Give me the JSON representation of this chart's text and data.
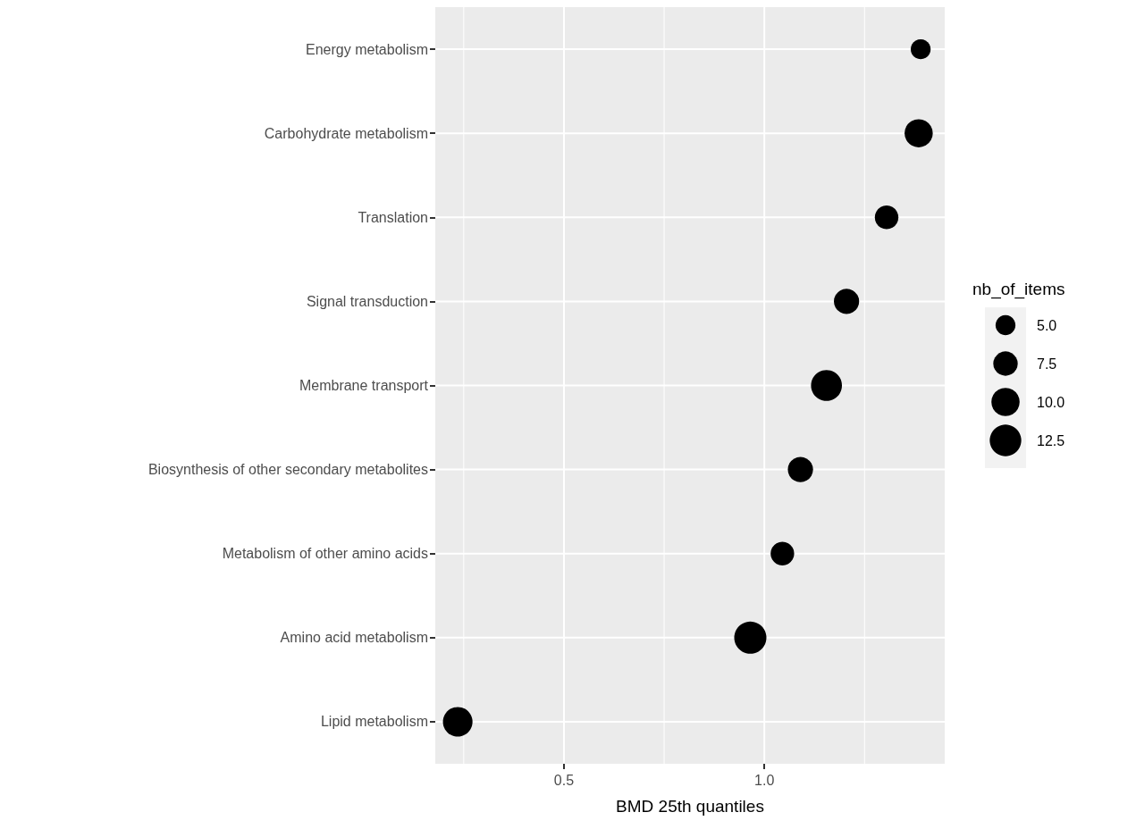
{
  "chart_data": {
    "type": "bubble",
    "xlabel": "BMD 25th quantiles",
    "legend_title": "nb_of_items",
    "categories": [
      "Energy metabolism",
      "Carbohydrate metabolism",
      "Translation",
      "Signal transduction",
      "Membrane transport",
      "Biosynthesis of other secondary metabolites",
      "Metabolism of other amino acids",
      "Amino acid metabolism",
      "Lipid metabolism"
    ],
    "values": [
      1.39,
      1.385,
      1.305,
      1.205,
      1.155,
      1.09,
      1.045,
      0.965,
      0.235
    ],
    "sizes": [
      5,
      10,
      7,
      8,
      12,
      8,
      7,
      13,
      11
    ],
    "size_legend": [
      {
        "value": 5,
        "label": "5.0"
      },
      {
        "value": 7.5,
        "label": "7.5"
      },
      {
        "value": 10,
        "label": "10.0"
      },
      {
        "value": 12.5,
        "label": "12.5"
      }
    ],
    "color": "#000000",
    "orientation": "horizontal",
    "xlim": [
      0.179,
      1.45
    ],
    "xticks": [
      {
        "value": 0.25,
        "label": null
      },
      {
        "value": 0.5,
        "label": "0.5"
      },
      {
        "value": 0.75,
        "label": null
      },
      {
        "value": 1.0,
        "label": "1.0"
      },
      {
        "value": 1.25,
        "label": null
      }
    ],
    "grid": true
  }
}
